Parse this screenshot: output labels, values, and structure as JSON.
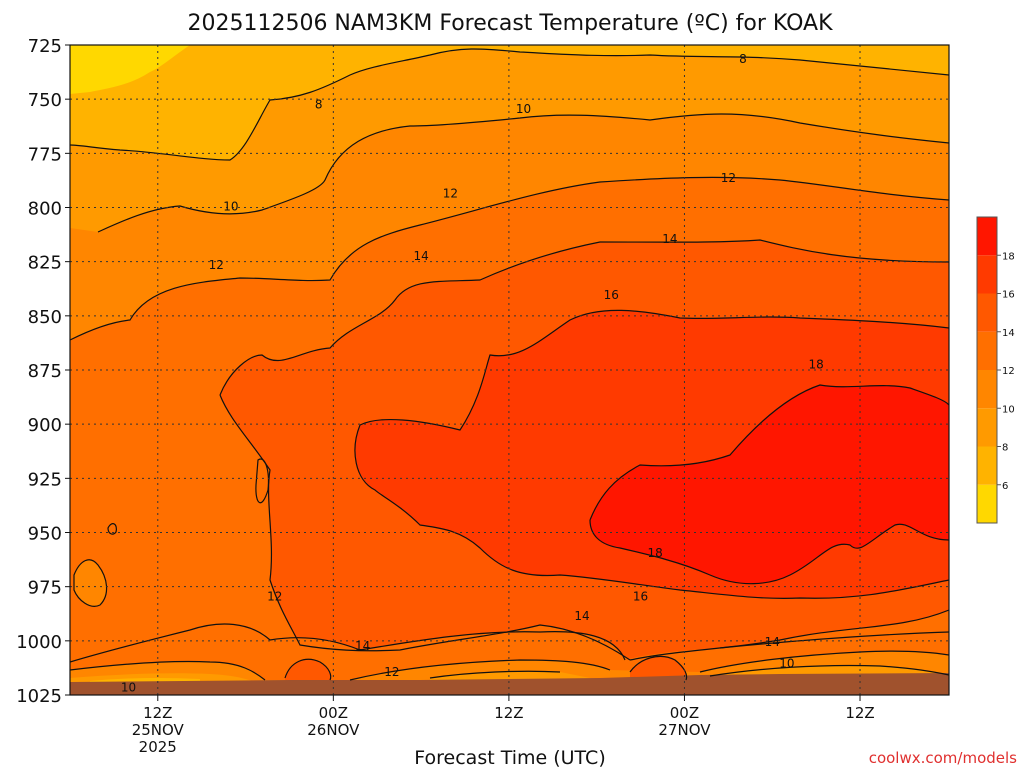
{
  "chart_data": {
    "type": "heatmap",
    "title": "2025112506 NAM3KM Forecast Temperature (ºC) for KOAK",
    "xlabel": "Forecast Time (UTC)",
    "ylabel": "",
    "credit": "coolwx.com/models",
    "x_ticks": [
      {
        "hours": 6,
        "lines": [
          "12Z",
          "25NOV",
          "2025"
        ]
      },
      {
        "hours": 18,
        "lines": [
          "00Z",
          "26NOV"
        ]
      },
      {
        "hours": 30,
        "lines": [
          "12Z"
        ]
      },
      {
        "hours": 42,
        "lines": [
          "00Z",
          "27NOV"
        ]
      },
      {
        "hours": 54,
        "lines": [
          "12Z"
        ]
      }
    ],
    "xlim_hours": [
      0,
      60
    ],
    "y_ticks": [
      725,
      750,
      775,
      800,
      825,
      850,
      875,
      900,
      925,
      950,
      975,
      1000,
      1025
    ],
    "ylim": [
      725,
      1025
    ],
    "grid": true,
    "colorbar": {
      "levels": [
        4,
        6,
        8,
        10,
        12,
        14,
        16,
        18,
        20
      ],
      "labels": [
        "6",
        "8",
        "10",
        "12",
        "14",
        "16",
        "18"
      ],
      "colors": [
        "#ffd800",
        "#ffb300",
        "#ff9a00",
        "#ff8600",
        "#ff6f00",
        "#ff5800",
        "#ff3a00",
        "#ff1600"
      ],
      "placement": "right"
    },
    "contour_labels": [
      {
        "text": "8",
        "hours": 46,
        "p": 731
      },
      {
        "text": "8",
        "hours": 17,
        "p": 752
      },
      {
        "text": "10",
        "hours": 31,
        "p": 754
      },
      {
        "text": "10",
        "hours": 11,
        "p": 799
      },
      {
        "text": "12",
        "hours": 45,
        "p": 786
      },
      {
        "text": "12",
        "hours": 26,
        "p": 793
      },
      {
        "text": "12",
        "hours": 10,
        "p": 826
      },
      {
        "text": "14",
        "hours": 41,
        "p": 814
      },
      {
        "text": "14",
        "hours": 24,
        "p": 822
      },
      {
        "text": "16",
        "hours": 37,
        "p": 840
      },
      {
        "text": "18",
        "hours": 51,
        "p": 872
      },
      {
        "text": "18",
        "hours": 40,
        "p": 959
      },
      {
        "text": "16",
        "hours": 39,
        "p": 979
      },
      {
        "text": "14",
        "hours": 35,
        "p": 988
      },
      {
        "text": "12",
        "hours": 14,
        "p": 979
      },
      {
        "text": "14",
        "hours": 20,
        "p": 1002
      },
      {
        "text": "12",
        "hours": 22,
        "p": 1014
      },
      {
        "text": "14",
        "hours": 48,
        "p": 1000
      },
      {
        "text": "10",
        "hours": 49,
        "p": 1010
      },
      {
        "text": "10",
        "hours": 4,
        "p": 1021
      }
    ]
  }
}
